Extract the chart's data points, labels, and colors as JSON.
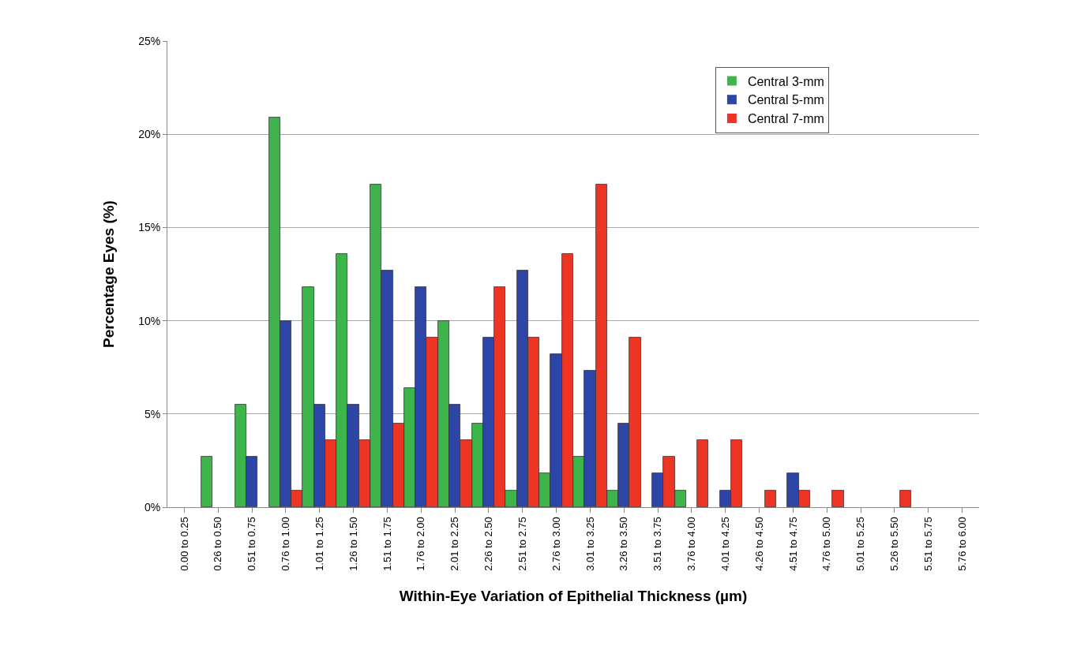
{
  "chart_data": {
    "type": "bar",
    "xlabel": "Within-Eye Variation of Epithelial Thickness (µm)",
    "ylabel": "Percentage Eyes (%)",
    "categories": [
      "0.00 to 0.25",
      "0.26 to 0.50",
      "0.51 to 0.75",
      "0.76 to 1.00",
      "1.01 to 1.25",
      "1.26 to 1.50",
      "1.51 to 1.75",
      "1.76 to 2.00",
      "2.01 to 2.25",
      "2.26 to 2.50",
      "2.51 to 2.75",
      "2.76 to 3.00",
      "3.01 to 3.25",
      "3.26 to 3.50",
      "3.51 to 3.75",
      "3.76 to 4.00",
      "4.01 to 4.25",
      "4.26 to 4.50",
      "4.51 to 4.75",
      "4.76 to 5.00",
      "5.01 to 5.25",
      "5.26 to 5.50",
      "5.51 to 5.75",
      "5.76 to 6.00"
    ],
    "series": [
      {
        "name": "Central 3-mm",
        "color": "#3db54a",
        "values": [
          0,
          2.7,
          5.5,
          20.9,
          11.8,
          13.6,
          17.3,
          6.4,
          10.0,
          4.5,
          0.9,
          1.8,
          2.7,
          0.9,
          0,
          0.9,
          0,
          0,
          0,
          0,
          0,
          0,
          0,
          0
        ]
      },
      {
        "name": "Central 5-mm",
        "color": "#2e45a8",
        "values": [
          0,
          0,
          2.7,
          10.0,
          5.5,
          5.5,
          12.7,
          11.8,
          5.5,
          9.1,
          12.7,
          8.2,
          7.3,
          4.5,
          1.8,
          0,
          0.9,
          0,
          1.8,
          0,
          0,
          0,
          0,
          0
        ]
      },
      {
        "name": "Central 7-mm",
        "color": "#ee3524",
        "values": [
          0,
          0,
          0,
          0.9,
          3.6,
          3.6,
          4.5,
          9.1,
          3.6,
          11.8,
          9.1,
          13.6,
          17.3,
          9.1,
          2.7,
          3.6,
          3.6,
          0.9,
          0.9,
          0.9,
          0,
          0.9,
          0,
          0
        ]
      }
    ],
    "ylim": [
      0,
      25
    ],
    "yticks": [
      {
        "value": 0,
        "label": "0%"
      },
      {
        "value": 5,
        "label": "5%"
      },
      {
        "value": 10,
        "label": "10%"
      },
      {
        "value": 15,
        "label": "15%"
      },
      {
        "value": 20,
        "label": "20%"
      },
      {
        "value": 25,
        "label": "25%"
      }
    ],
    "grid": "y",
    "legend": "top right"
  }
}
